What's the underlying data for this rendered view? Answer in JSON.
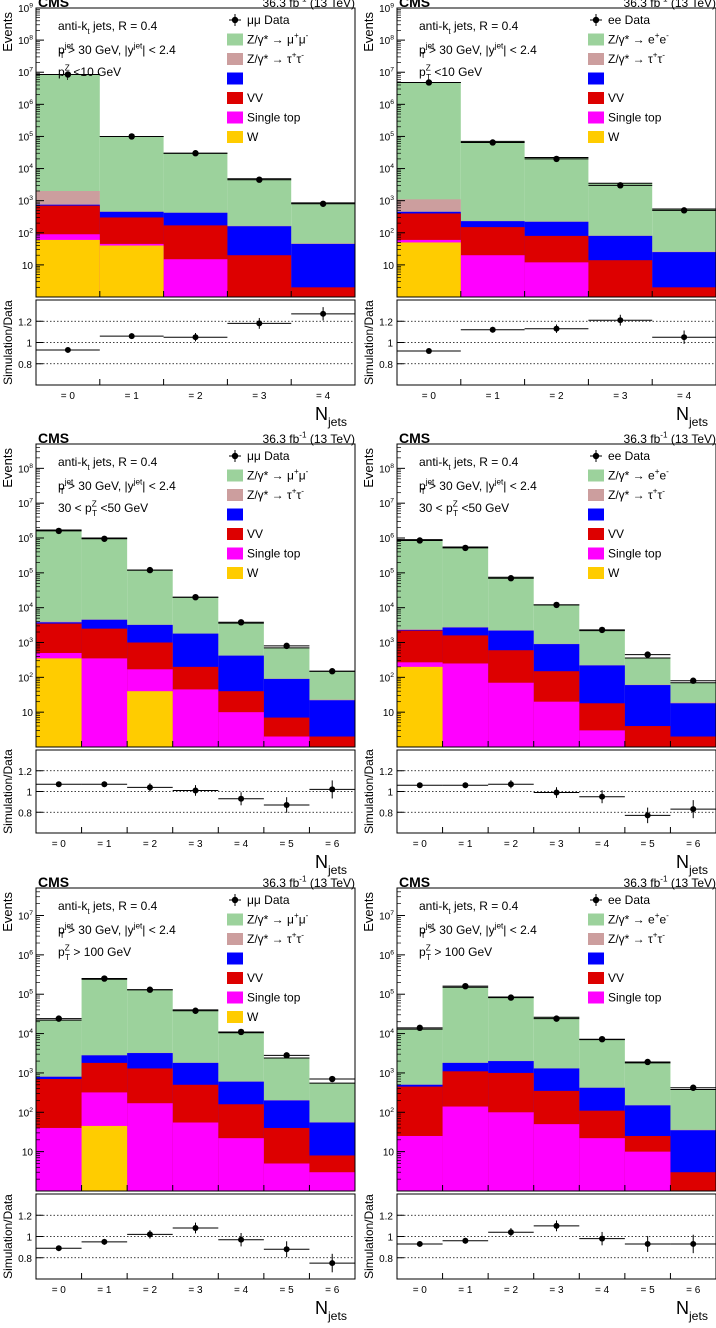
{
  "figure": {
    "experiment": "CMS",
    "lumi": "36.3 fb-1 (13 TeV)"
  },
  "common": {
    "algo": "anti-kt jets,  R = 0.4",
    "jetcut": "pT(jet) > 30 GeV,  |y(jet)| < 2.4",
    "ylabel_main": "Events",
    "ylabel_ratio": "Simulation/Data",
    "xlabel": "Njets",
    "ratio_ylim": [
      0.6,
      1.4
    ],
    "ratio_ticks": [
      "0.8",
      "1",
      "1.2"
    ]
  },
  "colors": {
    "zll": "#9cd29c",
    "ztt": "#cc9e9e",
    "ttbar": "#0000ff",
    "vv": "#dd0000",
    "st": "#ff00ff",
    "w": "#ffcc00"
  },
  "chart_data": [
    {
      "type": "bar",
      "panel": "mumu-low-pt",
      "channel": "mumu",
      "data_label": "μμ Data",
      "cut_label": "pT(Z) <10 GeV",
      "zll_label": "Z/γ* → μ+μ-",
      "ztt_label": "Z/γ* → τ+τ-",
      "ylim": [
        1,
        1000000000
      ],
      "ytick_labels": [
        "10",
        "10^2",
        "10^3",
        "10^4",
        "10^5",
        "10^6",
        "10^7",
        "10^8",
        "10^9"
      ],
      "categories": [
        "= 0",
        "= 1",
        "= 2",
        "= 3",
        "= 4"
      ],
      "stack": {
        "w": [
          60,
          40,
          1,
          1,
          1
        ],
        "st": [
          90,
          45,
          15,
          1,
          1
        ],
        "vv": [
          700,
          300,
          170,
          20,
          2
        ],
        "ttbar": [
          750,
          450,
          420,
          160,
          45
        ],
        "ztt": [
          2000,
          460,
          425,
          165,
          47
        ],
        "zll": [
          8500000,
          100000,
          30000,
          4800,
          850
        ]
      },
      "data": [
        8500000,
        100000,
        30000,
        4500,
        800
      ],
      "ratio": [
        0.93,
        1.06,
        1.05,
        1.18,
        1.27
      ]
    },
    {
      "type": "bar",
      "panel": "ee-low-pt",
      "channel": "ee",
      "data_label": "ee Data",
      "cut_label": "pT(Z) <10 GeV",
      "zll_label": "Z/γ* → e+e-",
      "ztt_label": "Z/γ* → τ+τ-",
      "ylim": [
        1,
        1000000000
      ],
      "ytick_labels": [
        "10",
        "10^2",
        "10^3",
        "10^4",
        "10^5",
        "10^6",
        "10^7",
        "10^8",
        "10^9"
      ],
      "categories": [
        "= 0",
        "= 1",
        "= 2",
        "= 3",
        "= 4"
      ],
      "stack": {
        "w": [
          50,
          1,
          1,
          1,
          1
        ],
        "st": [
          60,
          20,
          12,
          1,
          1
        ],
        "vv": [
          400,
          150,
          80,
          14,
          2
        ],
        "ttbar": [
          450,
          230,
          220,
          80,
          25
        ],
        "ztt": [
          1100,
          235,
          225,
          82,
          26
        ],
        "zll": [
          4800000,
          70000,
          22000,
          3500,
          550
        ]
      },
      "data": [
        4800000,
        65000,
        20000,
        3000,
        500
      ],
      "ratio": [
        0.92,
        1.12,
        1.13,
        1.21,
        1.05
      ]
    },
    {
      "type": "bar",
      "panel": "mumu-mid-pt",
      "channel": "mumu",
      "data_label": "μμ Data",
      "cut_label": "30 <  pT(Z) <50 GeV",
      "zll_label": "Z/γ* → μ+μ-",
      "ztt_label": "Z/γ* → τ+τ-",
      "ylim": [
        1,
        500000000
      ],
      "ytick_labels": [
        "10",
        "10^2",
        "10^3",
        "10^4",
        "10^5",
        "10^6",
        "10^7",
        "10^8"
      ],
      "categories": [
        "= 0",
        "= 1",
        "= 2",
        "= 3",
        "= 4",
        "= 5",
        "= 6"
      ],
      "stack": {
        "w": [
          350,
          1,
          40,
          1,
          1,
          1,
          1
        ],
        "st": [
          500,
          350,
          170,
          45,
          10,
          2,
          1
        ],
        "vv": [
          3500,
          2500,
          1000,
          200,
          40,
          7,
          2
        ],
        "ttbar": [
          3800,
          4500,
          3200,
          1800,
          420,
          90,
          22
        ],
        "ztt": [
          4000,
          4600,
          3250,
          1820,
          425,
          92,
          23
        ],
        "zll": [
          1700000,
          1000000,
          120000,
          20000,
          3600,
          700,
          150
        ]
      },
      "data": [
        1600000,
        950000,
        120000,
        20000,
        3800,
        800,
        150
      ],
      "ratio": [
        1.07,
        1.07,
        1.04,
        1.01,
        0.93,
        0.87,
        1.02
      ]
    },
    {
      "type": "bar",
      "panel": "ee-mid-pt",
      "channel": "ee",
      "data_label": "ee Data",
      "cut_label": "30 <  pT(Z) <50 GeV",
      "zll_label": "Z/γ* → e+e-",
      "ztt_label": "Z/γ* → τ+τ-",
      "ylim": [
        1,
        500000000
      ],
      "ytick_labels": [
        "10",
        "10^2",
        "10^3",
        "10^4",
        "10^5",
        "10^6",
        "10^7",
        "10^8"
      ],
      "categories": [
        "= 0",
        "= 1",
        "= 2",
        "= 3",
        "= 4",
        "= 5",
        "= 6"
      ],
      "stack": {
        "w": [
          200,
          1,
          1,
          1,
          1,
          1,
          1
        ],
        "st": [
          270,
          250,
          70,
          20,
          3,
          1,
          1
        ],
        "vv": [
          2200,
          1600,
          600,
          150,
          18,
          4,
          2
        ],
        "ttbar": [
          2300,
          2700,
          2200,
          900,
          220,
          60,
          18
        ],
        "ztt": [
          2400,
          2800,
          2250,
          920,
          225,
          62,
          19
        ],
        "zll": [
          900000,
          550000,
          75000,
          12000,
          2200,
          360,
          70
        ]
      },
      "data": [
        850000,
        520000,
        70000,
        12000,
        2300,
        450,
        80
      ],
      "ratio": [
        1.06,
        1.06,
        1.07,
        0.99,
        0.95,
        0.77,
        0.83
      ]
    },
    {
      "type": "bar",
      "panel": "mumu-high-pt",
      "channel": "mumu",
      "data_label": "μμ Data",
      "cut_label": "pT(Z) >  100 GeV",
      "zll_label": "Z/γ* → μ+μ-",
      "ztt_label": "Z/γ* → τ+τ-",
      "ylim": [
        1,
        50000000
      ],
      "ytick_labels": [
        "10",
        "10^2",
        "10^3",
        "10^4",
        "10^5",
        "10^6",
        "10^7"
      ],
      "categories": [
        "= 0",
        "= 1",
        "= 2",
        "= 3",
        "= 4",
        "= 5",
        "= 6"
      ],
      "stack": {
        "w": [
          1,
          45,
          1,
          1,
          1,
          1,
          1
        ],
        "st": [
          40,
          320,
          170,
          55,
          22,
          5,
          3
        ],
        "vv": [
          700,
          1800,
          1300,
          500,
          160,
          40,
          8
        ],
        "ttbar": [
          800,
          2800,
          3200,
          1800,
          600,
          200,
          55
        ],
        "ztt": [
          820,
          2850,
          3250,
          1820,
          610,
          205,
          56
        ],
        "zll": [
          22000,
          240000,
          130000,
          40000,
          10500,
          2400,
          550
        ]
      },
      "data": [
        24000,
        250000,
        130000,
        38000,
        11000,
        2800,
        700
      ],
      "ratio": [
        0.89,
        0.95,
        1.02,
        1.08,
        0.97,
        0.88,
        0.75
      ]
    },
    {
      "type": "bar",
      "panel": "ee-high-pt",
      "channel": "ee",
      "data_label": "ee Data",
      "cut_label": "pT(Z) >  100 GeV",
      "zll_label": "Z/γ* → e+e-",
      "ztt_label": "Z/γ* → τ+τ-",
      "ylim": [
        1,
        50000000
      ],
      "ytick_labels": [
        "10",
        "10^2",
        "10^3",
        "10^4",
        "10^5",
        "10^6",
        "10^7"
      ],
      "categories": [
        "= 0",
        "= 1",
        "= 2",
        "= 3",
        "= 4",
        "= 5",
        "= 6"
      ],
      "stack": {
        "w": [
          1,
          1,
          1,
          1,
          1,
          1,
          1
        ],
        "st": [
          25,
          140,
          100,
          50,
          22,
          10,
          1
        ],
        "vv": [
          450,
          1100,
          1000,
          350,
          110,
          25,
          3
        ],
        "ttbar": [
          500,
          1800,
          2000,
          1300,
          420,
          150,
          35
        ],
        "ztt": [
          510,
          1820,
          2020,
          1310,
          425,
          152,
          36
        ],
        "zll": [
          13000,
          150000,
          85000,
          26000,
          7000,
          1800,
          380
        ]
      },
      "data": [
        14000,
        160000,
        82000,
        24000,
        7200,
        1900,
        420
      ],
      "ratio": [
        0.93,
        0.96,
        1.04,
        1.1,
        0.98,
        0.93,
        0.93
      ]
    }
  ]
}
